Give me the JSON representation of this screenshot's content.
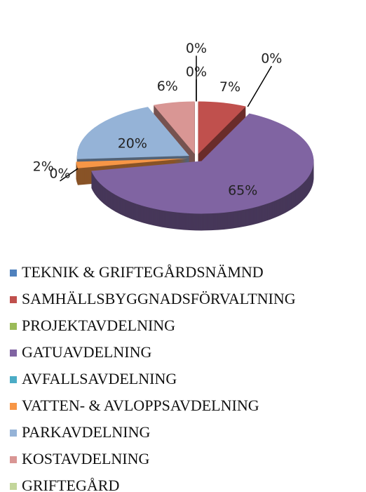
{
  "chart_data": {
    "type": "pie3d",
    "categories": [
      "TEKNIK & GRIFTEGÅRDSNÄMND",
      "SAMHÄLLSBYGGNADSFÖRVALTNING",
      "PROJEKTAVDELNING",
      "GATUAVDELNING",
      "AVFALLSAVDELNING",
      "VATTEN- & AVLOPPSAVDELNING",
      "PARKAVDELNING",
      "KOSTAVDELNING",
      "GRIFTEGÅRD"
    ],
    "values": [
      0,
      7,
      0,
      65,
      0,
      2,
      20,
      6,
      0
    ],
    "value_labels": [
      "0%",
      "7%",
      "0%",
      "65%",
      "0%",
      "2%",
      "20%",
      "6%",
      "0%"
    ],
    "colors": [
      "#4f81bd",
      "#c0504d",
      "#9bbb59",
      "#8064a2",
      "#4bacc6",
      "#f79646",
      "#95b3d7",
      "#d99694",
      "#c3d69b"
    ],
    "legend": "bottom"
  }
}
